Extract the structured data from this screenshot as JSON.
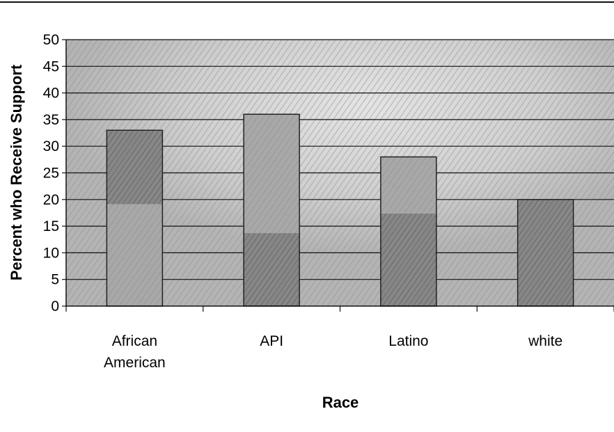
{
  "chart_data": {
    "type": "bar",
    "categories": [
      "African\nAmerican",
      "API",
      "Latino",
      "white"
    ],
    "values": [
      33,
      36,
      28,
      20
    ],
    "xlabel": "Race",
    "ylabel": "Percent who Receive Support",
    "ylim": [
      0,
      50
    ],
    "yticks": [
      0,
      5,
      10,
      15,
      20,
      25,
      30,
      35,
      40,
      45,
      50
    ],
    "grid": true,
    "legend": "none",
    "colors": {
      "plot_background": "#b8b8b8",
      "background_light": "#dcdcdc",
      "bar_fill": "#a8a8a8",
      "bar_dark": "#6e6e6e",
      "bar_stroke": "#222222",
      "grid": "#111111",
      "text": "#000000"
    }
  }
}
